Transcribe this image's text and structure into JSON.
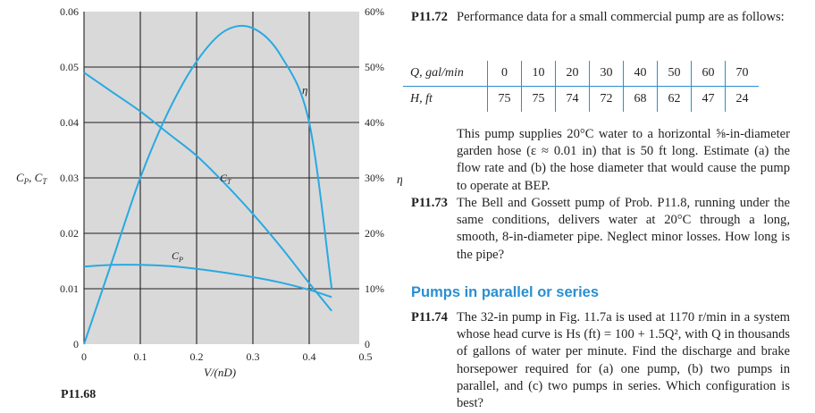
{
  "figure": {
    "label": "P11.68",
    "ylabel_left": "C_P, C_T",
    "ylabel_right": "η",
    "xlabel": "V/(nD)",
    "left_ticks": [
      "0.06",
      "0.05",
      "0.04",
      "0.03",
      "0.02",
      "0.01",
      "0"
    ],
    "right_ticks": [
      "60%",
      "50%",
      "40%",
      "30%",
      "20%",
      "10%",
      "0"
    ],
    "x_ticks": [
      "0",
      "0.1",
      "0.2",
      "0.3",
      "0.4",
      "0.5"
    ],
    "curve_labels": {
      "ct": "C_T",
      "cp": "C_P",
      "eta": "η"
    }
  },
  "chart_data": {
    "type": "line",
    "x": [
      0.0,
      0.05,
      0.1,
      0.15,
      0.2,
      0.25,
      0.3,
      0.35,
      0.4,
      0.44
    ],
    "xlabel": "V/(nD)",
    "ylabel": "C_P, C_T",
    "y2label": "η",
    "xlim": [
      0,
      0.5
    ],
    "ylim": [
      0,
      0.06
    ],
    "y2lim": [
      0,
      60
    ],
    "grid": true,
    "series": [
      {
        "name": "C_T",
        "axis": "left",
        "values": [
          0.049,
          0.0455,
          0.042,
          0.038,
          0.034,
          0.029,
          0.0235,
          0.0175,
          0.011,
          0.006
        ]
      },
      {
        "name": "C_P",
        "axis": "left",
        "values": [
          0.014,
          0.0143,
          0.0143,
          0.0141,
          0.0136,
          0.0129,
          0.0121,
          0.0111,
          0.0098,
          0.0085
        ]
      },
      {
        "name": "η",
        "axis": "right",
        "values": [
          0,
          15,
          30,
          42,
          51,
          56.5,
          57,
          52,
          40,
          10
        ]
      }
    ]
  },
  "p1172": {
    "num": "P11.72",
    "intro": "Performance data for a small commercial pump are as follows:",
    "q_label": "Q, gal/min",
    "h_label": "H, ft",
    "q_values": [
      "0",
      "10",
      "20",
      "30",
      "40",
      "50",
      "60",
      "70"
    ],
    "h_values": [
      "75",
      "75",
      "74",
      "72",
      "68",
      "62",
      "47",
      "24"
    ],
    "body": "This pump supplies 20°C water to a horizontal ⅝-in-diameter garden hose (ε ≈ 0.01 in) that is 50 ft long. Estimate (a) the flow rate and (b) the hose diameter that would cause the pump to operate at BEP."
  },
  "p1173": {
    "num": "P11.73",
    "body": "The Bell and Gossett pump of Prob. P11.8, running under the same conditions, delivers water at 20°C through a long, smooth, 8-in-diameter pipe. Neglect minor losses. How long is the pipe?"
  },
  "section": {
    "heading": "Pumps in parallel or series"
  },
  "p1174": {
    "num": "P11.74",
    "body": "The 32-in pump in Fig. 11.7a is used at 1170 r/min in a system whose head curve is Hs (ft) = 100 + 1.5Q², with Q in thousands of gallons of water per minute. Find the discharge and brake horsepower required for (a) one pump, (b) two pumps in parallel, and (c) two pumps in series. Which configuration is best?"
  },
  "colors": {
    "curve": "#29a9e0",
    "grid": "#231f20",
    "panel": "#d9d9da",
    "heading": "#2a8fd0"
  }
}
